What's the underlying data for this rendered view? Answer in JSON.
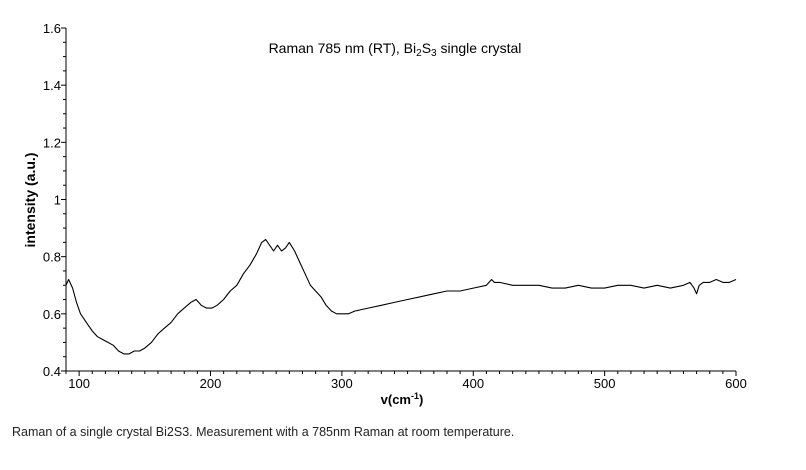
{
  "chart_data": {
    "type": "line",
    "title_parts": {
      "prefix": "Raman 785 nm (RT), Bi",
      "sub1": "2",
      "mid": "S",
      "sub2": "3",
      "suffix": " single crystal"
    },
    "xlabel": {
      "base": "v(cm",
      "sup": "-1",
      "close": ")"
    },
    "ylabel": "intensity (a.u.)",
    "xlim": [
      90,
      600
    ],
    "ylim": [
      0.4,
      1.6
    ],
    "xticks": [
      100,
      200,
      300,
      400,
      500,
      600
    ],
    "yticks": [
      0.4,
      0.6,
      0.8,
      1,
      1.2,
      1.4,
      1.6
    ],
    "ytick_labels": [
      "0.4",
      "0.6",
      "0.8",
      "1",
      "1.2",
      "1.4",
      "1.6"
    ],
    "grid": false,
    "legend": "none",
    "line_color": "#000000",
    "series": [
      {
        "x": [
          90,
          92,
          95,
          98,
          101,
          104,
          107,
          110,
          114,
          118,
          122,
          126,
          130,
          134,
          138,
          142,
          146,
          150,
          155,
          160,
          165,
          170,
          175,
          180,
          185,
          189,
          193,
          197,
          201,
          205,
          210,
          215,
          220,
          225,
          230,
          235,
          239,
          242,
          245,
          248,
          251,
          254,
          257,
          260,
          264,
          268,
          272,
          276,
          280,
          284,
          288,
          292,
          296,
          300,
          305,
          310,
          320,
          330,
          340,
          350,
          360,
          370,
          380,
          390,
          400,
          410,
          414,
          416,
          420,
          430,
          440,
          450,
          460,
          470,
          480,
          490,
          500,
          510,
          520,
          530,
          540,
          550,
          560,
          565,
          568,
          570,
          572,
          575,
          580,
          585,
          590,
          595,
          600
        ],
        "y": [
          0.7,
          0.72,
          0.69,
          0.64,
          0.6,
          0.58,
          0.56,
          0.54,
          0.52,
          0.51,
          0.5,
          0.49,
          0.47,
          0.46,
          0.46,
          0.47,
          0.47,
          0.48,
          0.5,
          0.53,
          0.55,
          0.57,
          0.6,
          0.62,
          0.64,
          0.65,
          0.63,
          0.62,
          0.62,
          0.63,
          0.65,
          0.68,
          0.7,
          0.74,
          0.77,
          0.81,
          0.85,
          0.86,
          0.84,
          0.82,
          0.84,
          0.82,
          0.83,
          0.85,
          0.82,
          0.78,
          0.74,
          0.7,
          0.68,
          0.66,
          0.63,
          0.61,
          0.6,
          0.6,
          0.6,
          0.61,
          0.62,
          0.63,
          0.64,
          0.65,
          0.66,
          0.67,
          0.68,
          0.68,
          0.69,
          0.7,
          0.72,
          0.71,
          0.71,
          0.7,
          0.7,
          0.7,
          0.69,
          0.69,
          0.7,
          0.69,
          0.69,
          0.7,
          0.7,
          0.69,
          0.7,
          0.69,
          0.7,
          0.71,
          0.69,
          0.67,
          0.7,
          0.71,
          0.71,
          0.72,
          0.71,
          0.71,
          0.72
        ]
      }
    ]
  },
  "caption": "Raman of a single crystal Bi2S3. Measurement with a 785nm Raman at room temperature."
}
